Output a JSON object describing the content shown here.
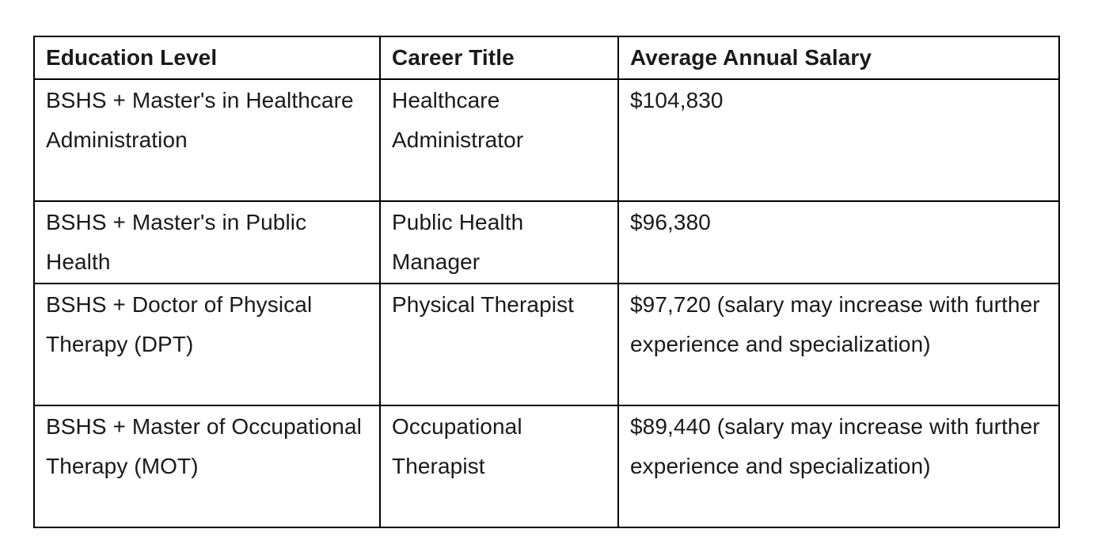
{
  "table": {
    "headers": [
      "Education Level",
      "Career Title",
      "Average Annual Salary"
    ],
    "rows": [
      {
        "education_level": "BSHS + Master's in Healthcare Administration",
        "career_title": "Healthcare Administrator",
        "salary": "$104,830"
      },
      {
        "education_level": "BSHS + Master's in Public Health",
        "career_title": "Public Health Manager",
        "salary": "$96,380"
      },
      {
        "education_level": "BSHS + Doctor of Physical Therapy (DPT)",
        "career_title": "Physical Therapist",
        "salary": "$97,720 (salary may increase with further experience and specialization)"
      },
      {
        "education_level": "BSHS + Master of Occupational Therapy (MOT)",
        "career_title": "Occupational Therapist",
        "salary": "$89,440 (salary may increase with further experience and specialization)"
      }
    ]
  },
  "colors": {
    "border": "#000000",
    "background": "#ffffff",
    "text": "#1a1a1a"
  }
}
